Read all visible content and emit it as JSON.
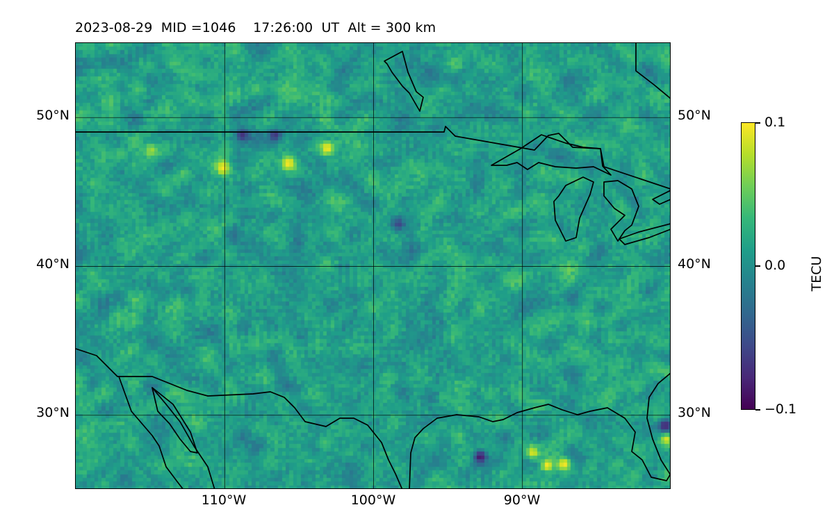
{
  "title": "2023-08-29  MID =1046    17:26:00  UT  Alt = 300 km",
  "map": {
    "lon_range": [
      -120,
      -80
    ],
    "lat_range": [
      25,
      55
    ],
    "lat_ticks": [
      {
        "value": 50,
        "label": "50°N"
      },
      {
        "value": 40,
        "label": "40°N"
      },
      {
        "value": 30,
        "label": "30°N"
      }
    ],
    "lon_ticks": [
      {
        "value": -110,
        "label": "110°W"
      },
      {
        "value": -100,
        "label": "100°W"
      },
      {
        "value": -90,
        "label": "90°W"
      }
    ],
    "coastline_color": "#000000",
    "grid": true,
    "field": "TEC anomaly"
  },
  "colorbar": {
    "label": "TECU",
    "colormap": "viridis",
    "min": -0.1,
    "max": 0.1,
    "ticks": [
      {
        "value": 0.1,
        "label": "0.1"
      },
      {
        "value": 0.0,
        "label": "0.0"
      },
      {
        "value": -0.1,
        "label": "−0.1"
      }
    ]
  },
  "hotspots": [
    {
      "lon": -103.1,
      "lat": 47.9,
      "value": 0.1
    },
    {
      "lon": -110.1,
      "lat": 46.6,
      "value": 0.1
    },
    {
      "lon": -105.7,
      "lat": 46.9,
      "value": 0.1
    },
    {
      "lon": -114.9,
      "lat": 47.8,
      "value": 0.07
    },
    {
      "lon": -87.2,
      "lat": 26.7,
      "value": 0.1
    },
    {
      "lon": -88.3,
      "lat": 26.6,
      "value": 0.1
    },
    {
      "lon": -89.3,
      "lat": 27.5,
      "value": 0.09
    },
    {
      "lon": -80.3,
      "lat": 28.4,
      "value": 0.09
    },
    {
      "lon": -92.8,
      "lat": 27.2,
      "value": -0.09
    },
    {
      "lon": -80.4,
      "lat": 29.3,
      "value": -0.08
    },
    {
      "lon": -98.3,
      "lat": 42.8,
      "value": -0.06
    },
    {
      "lon": -106.6,
      "lat": 48.8,
      "value": -0.07
    },
    {
      "lon": -108.8,
      "lat": 48.8,
      "value": -0.07
    },
    {
      "lon": -103.3,
      "lat": 28.1,
      "value": 0.04
    },
    {
      "lon": -114.0,
      "lat": 45.0,
      "value": 0.04
    },
    {
      "lon": -117.0,
      "lat": 47.5,
      "value": 0.04
    }
  ]
}
